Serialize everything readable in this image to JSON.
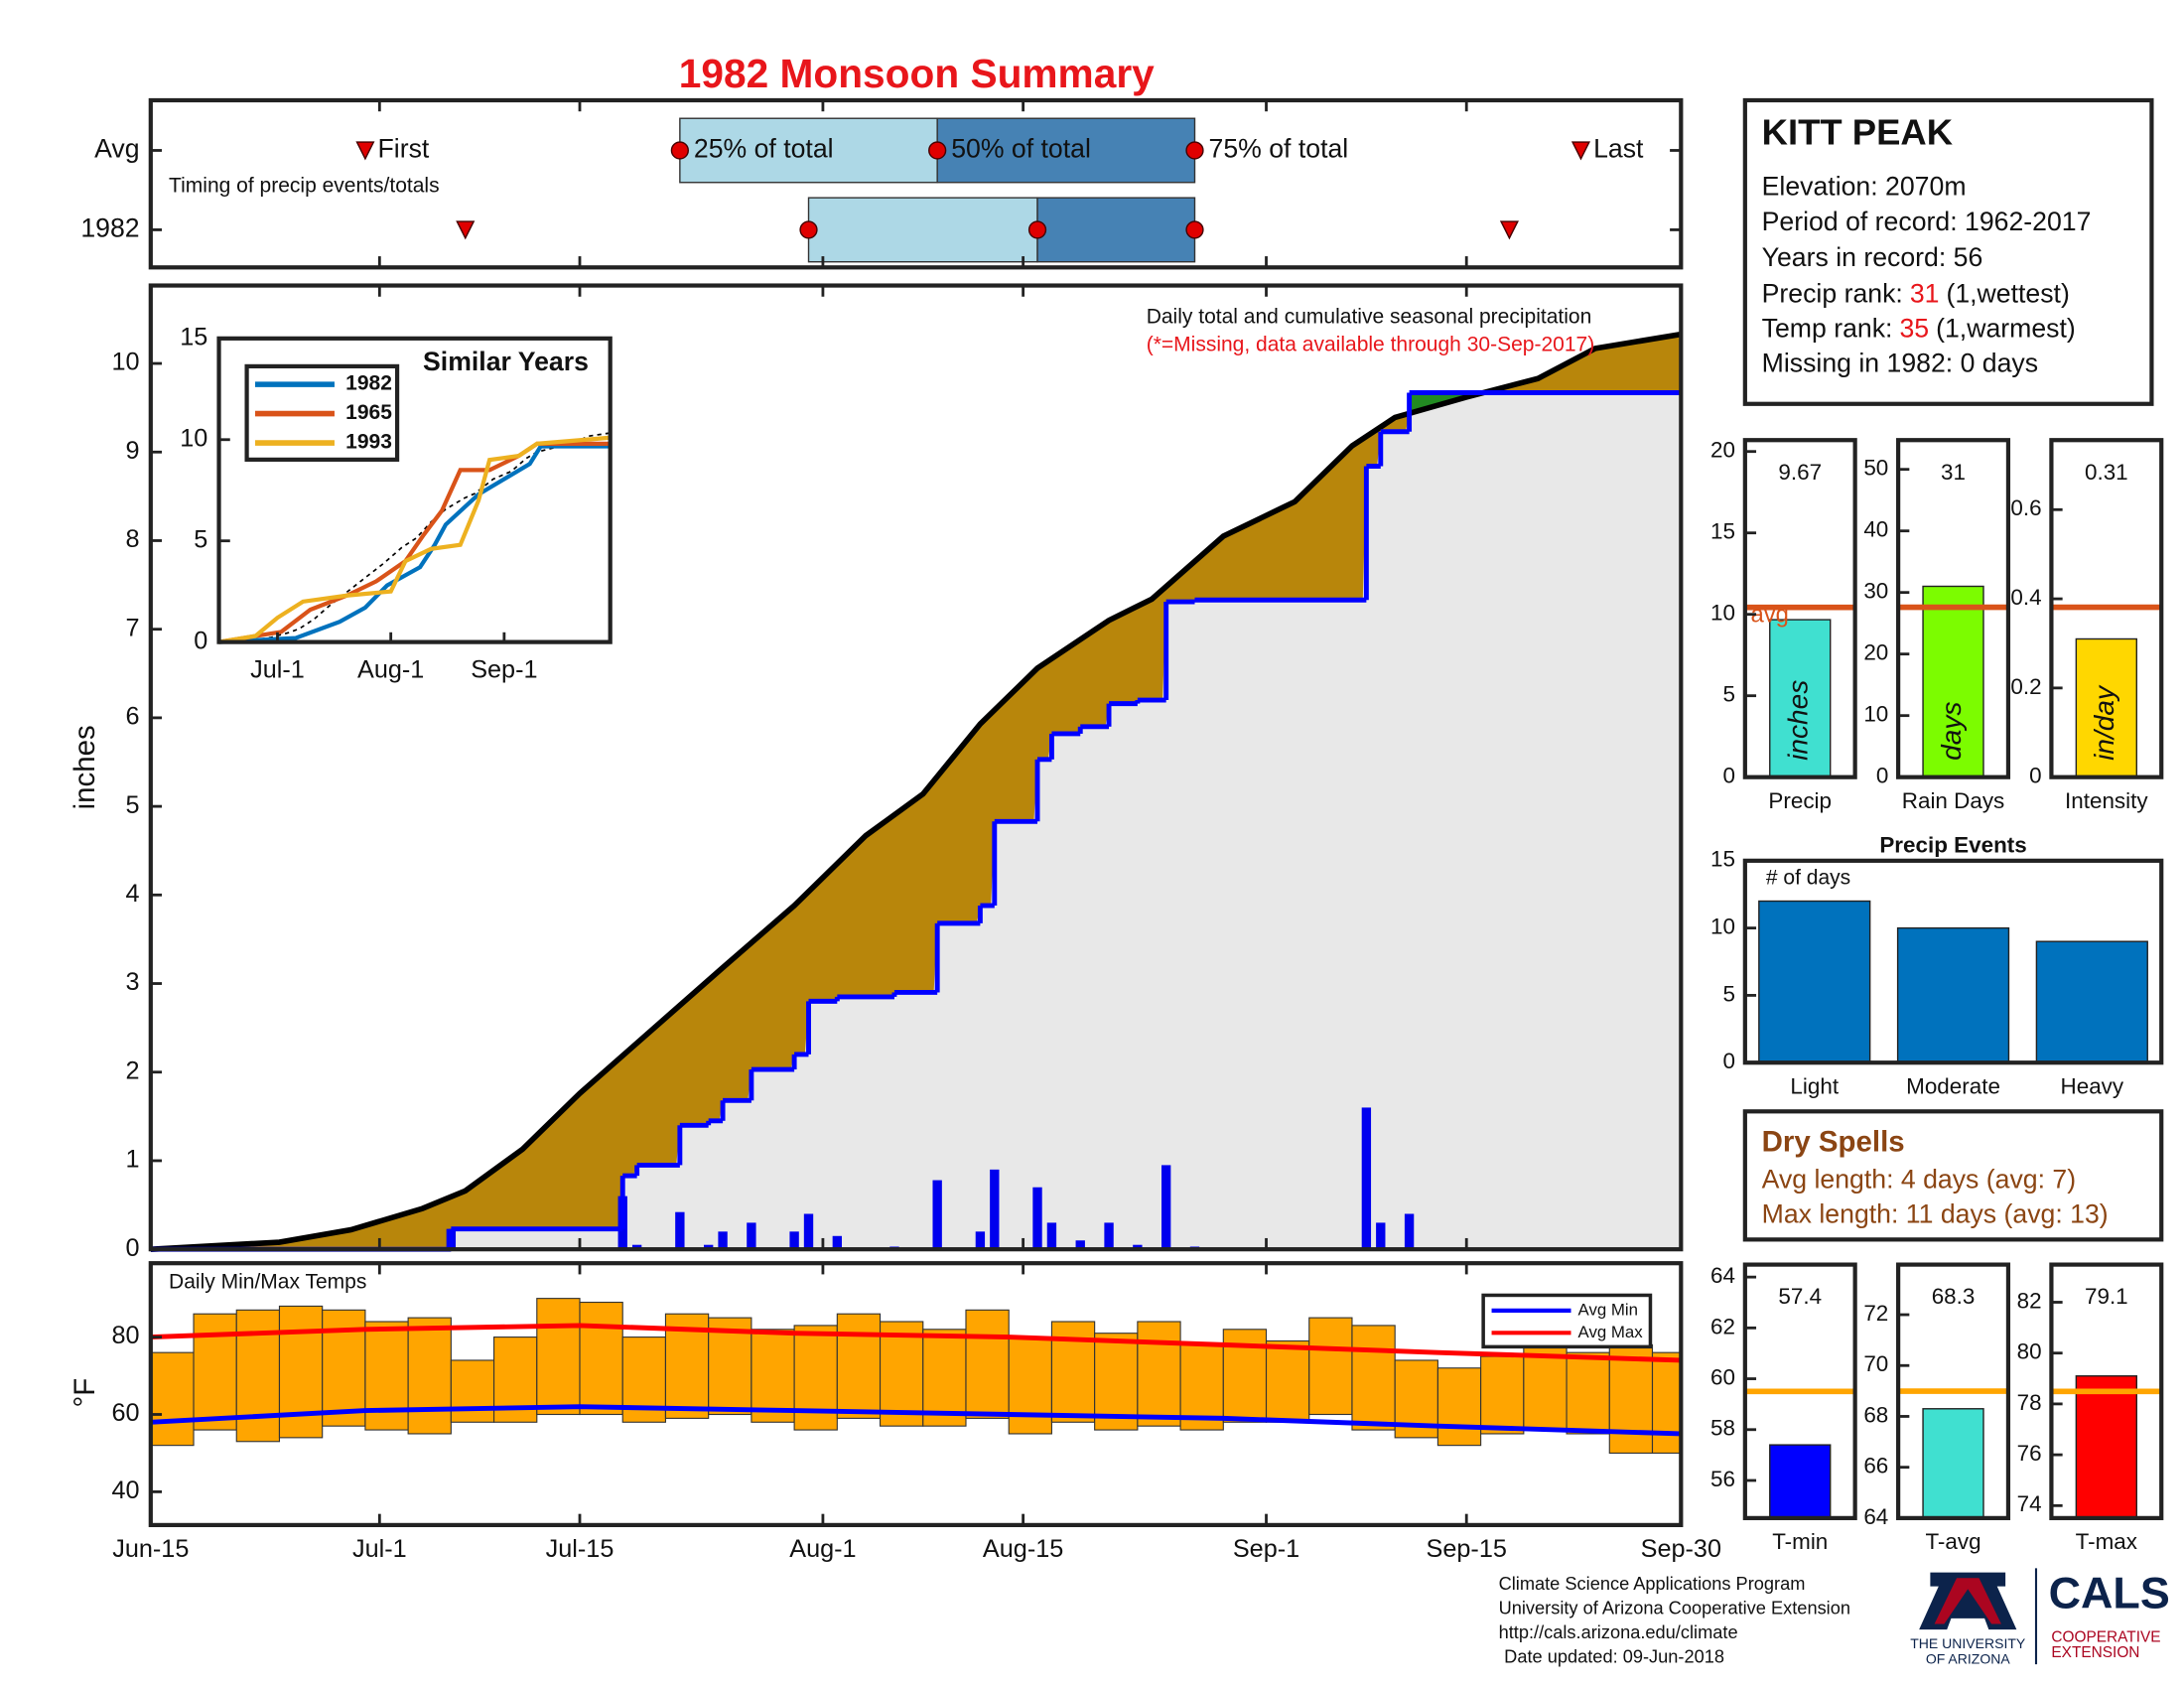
{
  "title": "1982 Monsoon Summary",
  "chart_data": [
    {
      "type": "timing",
      "rows": [
        "Avg",
        "1982"
      ],
      "caption": "Timing of precip events/totals",
      "xlim": [
        "1982-06-15",
        "1982-09-30"
      ],
      "first": [
        "1982-06-30",
        "1982-07-07"
      ],
      "q25": [
        "1982-07-22",
        "1982-07-31"
      ],
      "q50": [
        "1982-08-09",
        "1982-08-16"
      ],
      "q75": [
        "1982-08-27",
        "1982-08-27"
      ],
      "last": [
        "1982-09-23",
        "1982-09-18"
      ],
      "labels": {
        "first": "First",
        "q25": "25% of total",
        "q50": "50% of total",
        "q75": "75% of total",
        "last": "Last"
      },
      "colors": [
        "#add8e6",
        "#4682b4"
      ],
      "marker_color": "#e00000"
    },
    {
      "type": "step_area",
      "title": "Daily total and cumulative seasonal precipitation",
      "note": "(*=Missing, data available through 30-Sep-2017)",
      "ylabel": "inches",
      "xlim": [
        "1982-06-15",
        "1982-09-30"
      ],
      "ylim": [
        0,
        10.88
      ],
      "yticks": [
        0,
        1,
        2,
        3,
        4,
        5,
        6,
        7,
        8,
        9,
        10
      ],
      "avg": {
        "color": "#000000",
        "x": [
          "1982-06-15",
          "1982-06-24",
          "1982-06-29",
          "1982-07-04",
          "1982-07-07",
          "1982-07-11",
          "1982-07-15",
          "1982-07-20",
          "1982-07-25",
          "1982-07-30",
          "1982-08-04",
          "1982-08-08",
          "1982-08-12",
          "1982-08-16",
          "1982-08-21",
          "1982-08-24",
          "1982-08-29",
          "1982-09-03",
          "1982-09-07",
          "1982-09-10",
          "1982-09-15",
          "1982-09-20",
          "1982-09-24",
          "1982-09-30"
        ],
        "values": [
          0,
          0.08,
          0.22,
          0.46,
          0.66,
          1.13,
          1.76,
          2.47,
          3.18,
          3.88,
          4.67,
          5.14,
          5.93,
          6.56,
          7.1,
          7.34,
          8.05,
          8.44,
          9.07,
          9.39,
          9.62,
          9.83,
          10.17,
          10.33
        ]
      },
      "cumulative": {
        "color": "#0000ff",
        "x": [
          "1982-06-15",
          "1982-07-06",
          "1982-07-18",
          "1982-07-19",
          "1982-07-22",
          "1982-07-24",
          "1982-07-25",
          "1982-07-27",
          "1982-07-30",
          "1982-07-31",
          "1982-08-02",
          "1982-08-06",
          "1982-08-09",
          "1982-08-12",
          "1982-08-13",
          "1982-08-16",
          "1982-08-17",
          "1982-08-19",
          "1982-08-21",
          "1982-08-23",
          "1982-08-25",
          "1982-08-27",
          "1982-09-08",
          "1982-09-09",
          "1982-09-11"
        ],
        "values": [
          0,
          0.23,
          0.83,
          0.95,
          1.4,
          1.45,
          1.68,
          2.03,
          2.2,
          2.8,
          2.85,
          2.9,
          3.68,
          3.88,
          4.83,
          5.53,
          5.82,
          5.9,
          6.16,
          6.2,
          7.31,
          7.33,
          8.84,
          9.23,
          9.67
        ]
      },
      "daily": {
        "color": "#0000ee",
        "x": [
          "1982-07-06",
          "1982-07-18",
          "1982-07-19",
          "1982-07-22",
          "1982-07-24",
          "1982-07-25",
          "1982-07-27",
          "1982-07-30",
          "1982-07-31",
          "1982-08-02",
          "1982-08-06",
          "1982-08-09",
          "1982-08-12",
          "1982-08-13",
          "1982-08-16",
          "1982-08-17",
          "1982-08-19",
          "1982-08-21",
          "1982-08-23",
          "1982-08-25",
          "1982-08-27",
          "1982-09-08",
          "1982-09-09",
          "1982-09-11"
        ],
        "values": [
          0.23,
          0.6,
          0.05,
          0.42,
          0.05,
          0.2,
          0.3,
          0.2,
          0.4,
          0.15,
          0.03,
          0.78,
          0.2,
          0.9,
          0.7,
          0.3,
          0.1,
          0.3,
          0.05,
          0.95,
          0.03,
          1.6,
          0.3,
          0.4
        ]
      },
      "fill_colors": {
        "below": "#b8860b",
        "above": "#228b22",
        "base": "#e8e8e8"
      }
    },
    {
      "type": "line",
      "title": "Similar Years",
      "xlim": [
        "1982-06-15",
        "1982-09-30"
      ],
      "ylim": [
        0,
        15
      ],
      "yticks": [
        0,
        5,
        10,
        15
      ],
      "xticks": [
        {
          "value": "1982-07-01",
          "label": "Jul-1"
        },
        {
          "value": "1982-08-01",
          "label": "Aug-1"
        },
        {
          "value": "1982-09-01",
          "label": "Sep-1"
        }
      ],
      "series": [
        {
          "name": "1982",
          "color": "#0072bd",
          "x": [
            "1982-06-15",
            "1982-07-06",
            "1982-07-18",
            "1982-07-25",
            "1982-07-31",
            "1982-08-09",
            "1982-08-13",
            "1982-08-16",
            "1982-08-25",
            "1982-09-08",
            "1982-09-11",
            "1982-09-30"
          ],
          "values": [
            0,
            0.2,
            1,
            1.7,
            2.8,
            3.7,
            4.8,
            5.8,
            7.3,
            8.8,
            9.67,
            9.67
          ]
        },
        {
          "name": "1965",
          "color": "#d95319",
          "x": [
            "1982-06-15",
            "1982-07-02",
            "1982-07-10",
            "1982-07-20",
            "1982-07-28",
            "1982-08-05",
            "1982-08-10",
            "1982-08-15",
            "1982-08-20",
            "1982-08-28",
            "1982-09-05",
            "1982-09-10",
            "1982-09-30"
          ],
          "values": [
            0,
            0.5,
            1.6,
            2.3,
            3,
            4,
            5.3,
            6.5,
            8.5,
            8.5,
            9.2,
            9.8,
            9.8
          ]
        },
        {
          "name": "1993",
          "color": "#edb120",
          "x": [
            "1982-06-15",
            "1982-06-25",
            "1982-07-01",
            "1982-07-08",
            "1982-07-20",
            "1982-08-01",
            "1982-08-05",
            "1982-08-12",
            "1982-08-20",
            "1982-08-25",
            "1982-08-28",
            "1982-09-05",
            "1982-09-10",
            "1982-09-30"
          ],
          "values": [
            0,
            0.3,
            1.2,
            2,
            2.3,
            2.5,
            4,
            4.6,
            4.8,
            7,
            9,
            9.2,
            9.8,
            10.1
          ]
        }
      ]
    },
    {
      "type": "range_bar",
      "title": "Daily Min/Max Temps",
      "ylabel": "°F",
      "xlim": [
        "1982-06-15",
        "1982-09-30"
      ],
      "ylim": [
        31.4,
        99.1
      ],
      "yticks": [
        40,
        60,
        80
      ],
      "xticks": [
        {
          "value": "1982-06-15",
          "label": "Jun-15"
        },
        {
          "value": "1982-07-01",
          "label": "Jul-1"
        },
        {
          "value": "1982-07-15",
          "label": "Jul-15"
        },
        {
          "value": "1982-08-01",
          "label": "Aug-1"
        },
        {
          "value": "1982-08-15",
          "label": "Aug-15"
        },
        {
          "value": "1982-09-01",
          "label": "Sep-1"
        },
        {
          "value": "1982-09-15",
          "label": "Sep-15"
        },
        {
          "value": "1982-09-30",
          "label": "Sep-30"
        }
      ],
      "x": [
        "1982-06-15",
        "1982-06-18",
        "1982-06-21",
        "1982-06-24",
        "1982-06-27",
        "1982-06-30",
        "1982-07-03",
        "1982-07-06",
        "1982-07-09",
        "1982-07-12",
        "1982-07-15",
        "1982-07-18",
        "1982-07-21",
        "1982-07-24",
        "1982-07-27",
        "1982-07-30",
        "1982-08-02",
        "1982-08-05",
        "1982-08-08",
        "1982-08-11",
        "1982-08-14",
        "1982-08-17",
        "1982-08-20",
        "1982-08-23",
        "1982-08-26",
        "1982-08-29",
        "1982-09-01",
        "1982-09-04",
        "1982-09-07",
        "1982-09-10",
        "1982-09-13",
        "1982-09-16",
        "1982-09-19",
        "1982-09-22",
        "1982-09-25",
        "1982-09-28"
      ],
      "max": [
        76,
        86,
        87,
        88,
        87,
        84,
        85,
        74,
        80,
        90,
        89,
        80,
        86,
        85,
        82,
        83,
        86,
        84,
        82,
        87,
        80,
        84,
        81,
        84,
        78,
        82,
        79,
        85,
        83,
        74,
        72,
        75,
        78,
        76,
        78,
        76
      ],
      "min": [
        52,
        56,
        53,
        54,
        57,
        56,
        55,
        58,
        58,
        60,
        60,
        58,
        59,
        60,
        58,
        56,
        59,
        57,
        57,
        59,
        55,
        58,
        56,
        57,
        56,
        58,
        58,
        60,
        56,
        54,
        52,
        55,
        56,
        55,
        50,
        50
      ],
      "color": "#ffa500",
      "series": [
        {
          "name": "Avg Min",
          "color": "#0000ff",
          "x": [
            "1982-06-15",
            "1982-06-30",
            "1982-07-15",
            "1982-07-30",
            "1982-08-14",
            "1982-08-29",
            "1982-09-13",
            "1982-09-30"
          ],
          "values": [
            58,
            61,
            62,
            61,
            60,
            59,
            57,
            55
          ]
        },
        {
          "name": "Avg Max",
          "color": "#ff0000",
          "x": [
            "1982-06-15",
            "1982-06-30",
            "1982-07-15",
            "1982-07-30",
            "1982-08-14",
            "1982-08-29",
            "1982-09-13",
            "1982-09-30"
          ],
          "values": [
            80,
            82,
            83,
            81,
            80,
            78,
            76,
            74
          ]
        }
      ]
    },
    {
      "type": "bar",
      "categories": [
        "Precip"
      ],
      "values": [
        9.67
      ],
      "avg": 10.43,
      "avg_label": "avg",
      "unit": "inches",
      "data_labels": true,
      "color": "#40e0d0",
      "avg_color": "#d95319",
      "ylim": [
        0,
        20.7
      ],
      "yticks": [
        0,
        5,
        10,
        15,
        20
      ]
    },
    {
      "type": "bar",
      "categories": [
        "Rain Days"
      ],
      "values": [
        31
      ],
      "avg": 27.6,
      "unit": "days",
      "data_labels": true,
      "color": "#7cfc00",
      "avg_color": "#d95319",
      "ylim": [
        0,
        54.75
      ],
      "yticks": [
        0,
        10,
        20,
        30,
        40,
        50
      ]
    },
    {
      "type": "bar",
      "categories": [
        "Intensity"
      ],
      "values": [
        0.31
      ],
      "avg": 0.381,
      "unit": "in/day",
      "data_labels": true,
      "color": "#ffd700",
      "avg_color": "#d95319",
      "ylim": [
        0,
        0.756
      ],
      "yticks": [
        0,
        0.2,
        0.4,
        0.6
      ]
    },
    {
      "type": "bar",
      "title": "Precip Events",
      "note": "# of days",
      "categories": [
        "Light",
        "Moderate",
        "Heavy"
      ],
      "values": [
        12,
        10,
        9
      ],
      "color": "#0072bd",
      "ylim": [
        0,
        15
      ],
      "yticks": [
        0,
        5,
        10,
        15
      ]
    },
    {
      "type": "bar",
      "categories": [
        "T-min"
      ],
      "values": [
        57.4
      ],
      "avg": 59.5,
      "data_labels": true,
      "color": "#0000ff",
      "avg_color": "#ffa500",
      "ylim": [
        54.52,
        64.49
      ],
      "yticks": [
        56,
        58,
        60,
        62,
        64
      ]
    },
    {
      "type": "bar",
      "categories": [
        "T-avg"
      ],
      "values": [
        68.3
      ],
      "avg": 68.99,
      "data_labels": true,
      "color": "#40e0d0",
      "avg_color": "#ffa500",
      "ylim": [
        64,
        73.97
      ],
      "yticks": [
        64,
        66,
        68,
        70,
        72
      ]
    },
    {
      "type": "bar",
      "categories": [
        "T-max"
      ],
      "values": [
        79.1
      ],
      "avg": 78.49,
      "data_labels": true,
      "color": "#ff0000",
      "avg_color": "#ffa500",
      "ylim": [
        73.51,
        83.48
      ],
      "yticks": [
        74,
        76,
        78,
        80,
        82
      ]
    }
  ],
  "station": {
    "name": "KITT PEAK",
    "lines": [
      "Elevation: 2070m",
      "Period of record: 1962-2017",
      "Years in record: 56"
    ],
    "ranks": [
      {
        "label": "Precip rank:",
        "value": 31,
        "note": "(1,wettest)"
      },
      {
        "label": "Temp rank:",
        "value": 35,
        "note": "(1,warmest)"
      }
    ],
    "missing": "Missing in 1982: 0 days",
    "rank_color": "#e8161b"
  },
  "dry_spells": {
    "title": "Dry Spells",
    "lines": [
      "Avg length: 4 days (avg: 7)",
      "Max length: 11 days (avg: 13)"
    ],
    "color": "#8b4513"
  },
  "footer": {
    "lines": [
      "Climate Science Applications Program",
      "University of Arizona Cooperative Extension",
      "http://cals.arizona.edu/climate",
      "Date updated: 09-Jun-2018"
    ],
    "logo": {
      "university": [
        "THE UNIVERSITY",
        "OF ARIZONA"
      ],
      "cals": "CALS",
      "extension": [
        "COOPERATIVE",
        "EXTENSION"
      ]
    }
  }
}
